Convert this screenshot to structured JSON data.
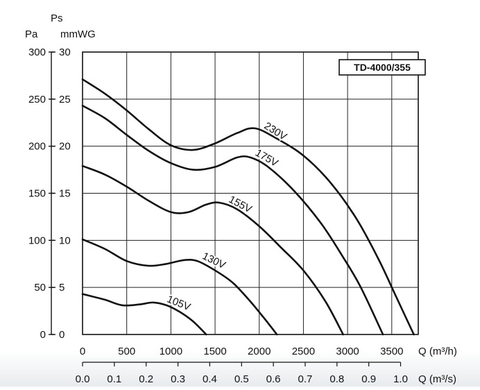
{
  "chart_data": {
    "type": "line",
    "title": "TD-4000/355",
    "y_axis_title": "Ps",
    "y_left_unit": "Pa",
    "y_right_unit": "mmWG",
    "x_unit_m3h": "Q (m³/h)",
    "x_unit_m3s": "Q (m³/s)",
    "xlim": [
      0,
      3800
    ],
    "ylim": [
      0,
      300
    ],
    "x_ticks_m3h": [
      "0",
      "500",
      "1000",
      "1500",
      "2000",
      "2500",
      "3000",
      "3500"
    ],
    "x_ticks_m3s": [
      "0.0",
      "0.1",
      "0.2",
      "0.3",
      "0.4",
      "0.5",
      "0.6",
      "0.7",
      "0.8",
      "0.9",
      "1.0"
    ],
    "y_ticks_pa": [
      "0",
      "50",
      "100",
      "150",
      "200",
      "250",
      "300"
    ],
    "y_ticks_mmwg": [
      "0",
      "5",
      "10",
      "15",
      "20",
      "25",
      "30"
    ],
    "grid": true,
    "series": [
      {
        "name": "230V",
        "points": [
          [
            0,
            271
          ],
          [
            250,
            256
          ],
          [
            500,
            238
          ],
          [
            750,
            218
          ],
          [
            1000,
            201
          ],
          [
            1250,
            196
          ],
          [
            1500,
            203
          ],
          [
            1750,
            214
          ],
          [
            1950,
            219
          ],
          [
            2200,
            208
          ],
          [
            2500,
            190
          ],
          [
            2800,
            162
          ],
          [
            3100,
            123
          ],
          [
            3350,
            80
          ],
          [
            3550,
            40
          ],
          [
            3750,
            0
          ]
        ]
      },
      {
        "name": "175V",
        "points": [
          [
            0,
            243
          ],
          [
            250,
            230
          ],
          [
            500,
            212
          ],
          [
            750,
            195
          ],
          [
            1000,
            182
          ],
          [
            1250,
            175
          ],
          [
            1500,
            178
          ],
          [
            1750,
            188
          ],
          [
            1900,
            188
          ],
          [
            2100,
            178
          ],
          [
            2400,
            152
          ],
          [
            2700,
            118
          ],
          [
            2950,
            82
          ],
          [
            3150,
            50
          ],
          [
            3400,
            0
          ]
        ]
      },
      {
        "name": "155V",
        "points": [
          [
            0,
            179
          ],
          [
            250,
            170
          ],
          [
            500,
            157
          ],
          [
            750,
            142
          ],
          [
            1000,
            130
          ],
          [
            1200,
            130
          ],
          [
            1400,
            138
          ],
          [
            1550,
            140
          ],
          [
            1750,
            133
          ],
          [
            2000,
            115
          ],
          [
            2250,
            92
          ],
          [
            2500,
            68
          ],
          [
            2750,
            35
          ],
          [
            2950,
            0
          ]
        ]
      },
      {
        "name": "130V",
        "points": [
          [
            0,
            101
          ],
          [
            250,
            91
          ],
          [
            500,
            78
          ],
          [
            750,
            73
          ],
          [
            950,
            75
          ],
          [
            1150,
            79
          ],
          [
            1300,
            78
          ],
          [
            1500,
            68
          ],
          [
            1700,
            55
          ],
          [
            1900,
            35
          ],
          [
            2050,
            18
          ],
          [
            2200,
            0
          ]
        ]
      },
      {
        "name": "105V",
        "points": [
          [
            0,
            43
          ],
          [
            250,
            37
          ],
          [
            450,
            31
          ],
          [
            650,
            32
          ],
          [
            800,
            34
          ],
          [
            950,
            31
          ],
          [
            1100,
            24
          ],
          [
            1250,
            14
          ],
          [
            1400,
            0
          ]
        ]
      }
    ]
  }
}
